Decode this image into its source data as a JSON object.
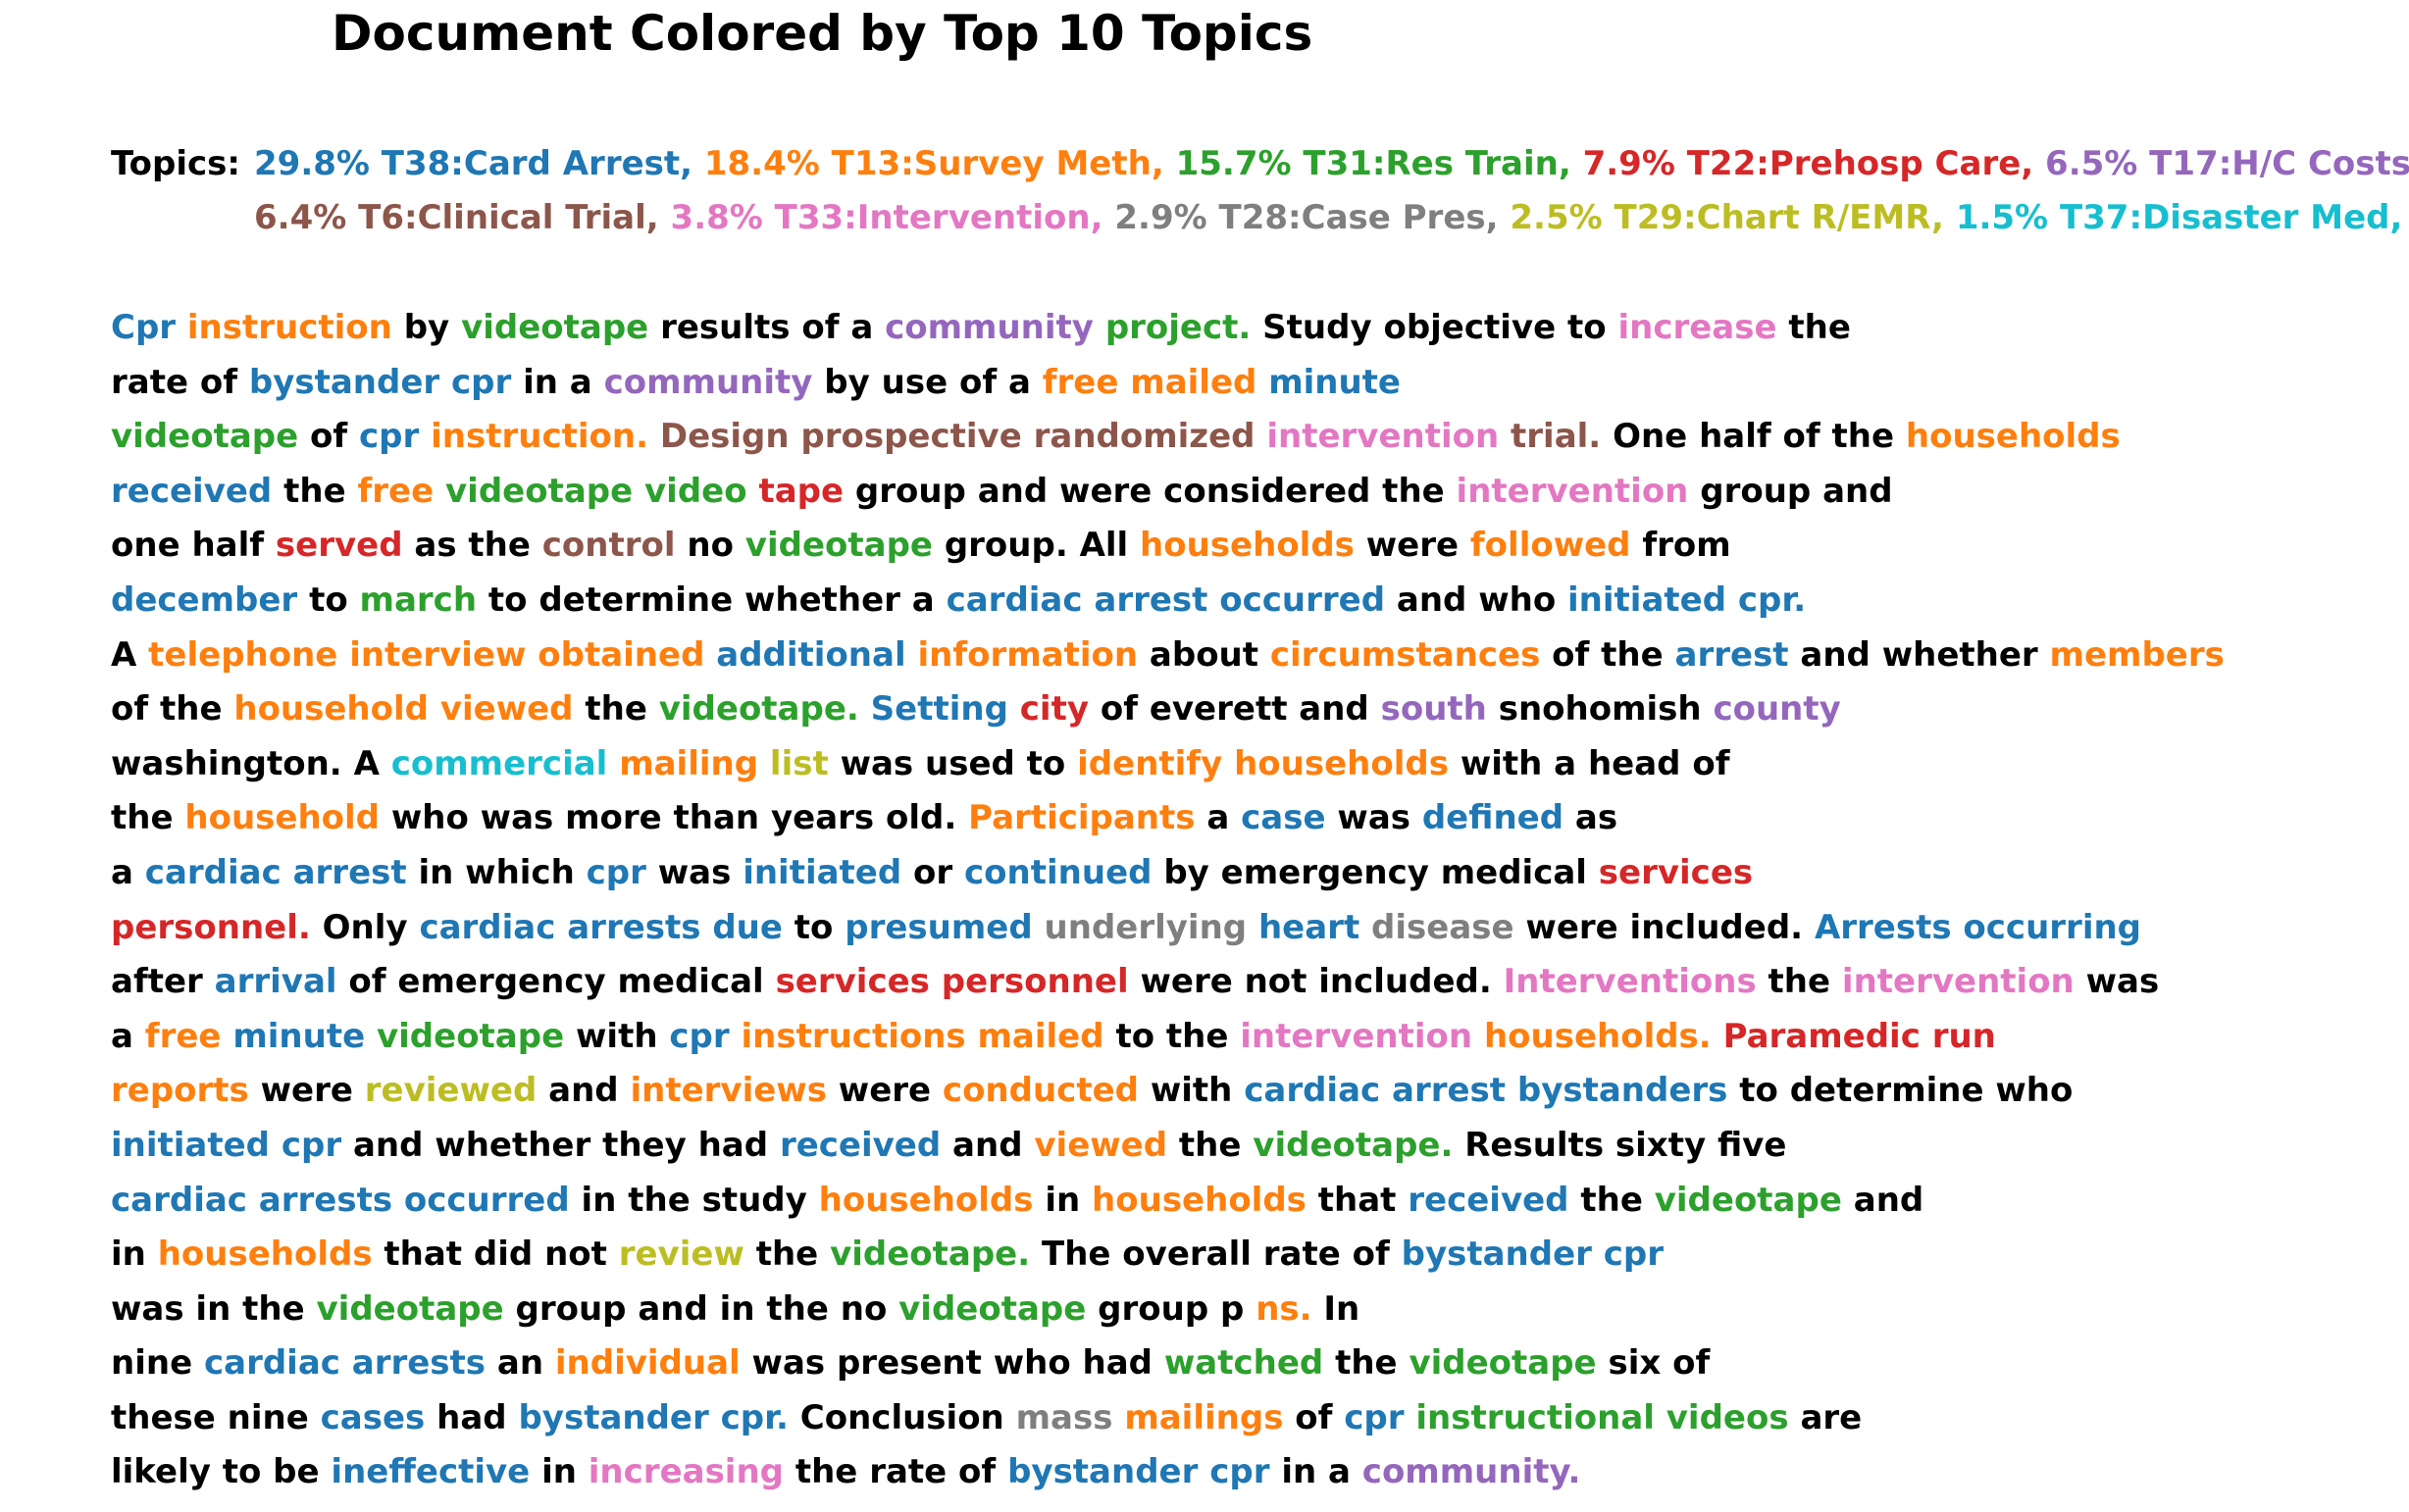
{
  "title": "Document Colored by Top 10 Topics",
  "legend_label": "Topics:",
  "topic_colors": {
    "T38": "#1f77b4",
    "T13": "#ff7f0e",
    "T31": "#2ca02c",
    "T22": "#d62728",
    "T17": "#9467bd",
    "T6": "#8c564b",
    "T33": "#e377c2",
    "T28": "#7f7f7f",
    "T29": "#bcbd22",
    "T37": "#17becf",
    "none": "#000000"
  },
  "topics": [
    {
      "id": "T38",
      "label": "29.8% T38:Card Arrest,"
    },
    {
      "id": "T13",
      "label": "18.4% T13:Survey Meth,"
    },
    {
      "id": "T31",
      "label": "15.7% T31:Res Train,"
    },
    {
      "id": "T22",
      "label": "7.9% T22:Prehosp Care,"
    },
    {
      "id": "T17",
      "label": "6.5% T17:H/C Costs,"
    },
    {
      "id": "T6",
      "label": "6.4% T6:Clinical Trial,"
    },
    {
      "id": "T33",
      "label": "3.8% T33:Intervention,"
    },
    {
      "id": "T28",
      "label": "2.9% T28:Case Pres,"
    },
    {
      "id": "T29",
      "label": "2.5% T29:Chart R/EMR,"
    },
    {
      "id": "T37",
      "label": "1.5% T37:Disaster Med,"
    }
  ],
  "legend_lines": [
    [
      0,
      1,
      2,
      3,
      4
    ],
    [
      5,
      6,
      7,
      8,
      9
    ]
  ],
  "lines": [
    [
      [
        "Cpr",
        "T38"
      ],
      [
        "instruction",
        "T13"
      ],
      [
        "by",
        ""
      ],
      [
        "videotape",
        "T31"
      ],
      [
        "results of a",
        ""
      ],
      [
        "community",
        "T17"
      ],
      [
        "project.",
        "T31"
      ],
      [
        "Study objective to",
        ""
      ],
      [
        "increase",
        "T33"
      ],
      [
        "the",
        ""
      ]
    ],
    [
      [
        "rate of",
        ""
      ],
      [
        "bystander cpr",
        "T38"
      ],
      [
        "in a",
        ""
      ],
      [
        "community",
        "T17"
      ],
      [
        "by use of a",
        ""
      ],
      [
        "free mailed",
        "T13"
      ],
      [
        "minute",
        "T38"
      ]
    ],
    [
      [
        "videotape",
        "T31"
      ],
      [
        "of",
        ""
      ],
      [
        "cpr",
        "T38"
      ],
      [
        "instruction.",
        "T13"
      ],
      [
        "Design prospective randomized",
        "T6"
      ],
      [
        "intervention",
        "T33"
      ],
      [
        "trial.",
        "T6"
      ],
      [
        "One half of the",
        ""
      ],
      [
        "households",
        "T13"
      ]
    ],
    [
      [
        "received",
        "T38"
      ],
      [
        "the",
        ""
      ],
      [
        "free",
        "T13"
      ],
      [
        "videotape video",
        "T31"
      ],
      [
        "tape",
        "T22"
      ],
      [
        "group and were considered the",
        ""
      ],
      [
        "intervention",
        "T33"
      ],
      [
        "group and",
        ""
      ]
    ],
    [
      [
        "one half",
        ""
      ],
      [
        "served",
        "T22"
      ],
      [
        "as the",
        ""
      ],
      [
        "control",
        "T6"
      ],
      [
        "no",
        ""
      ],
      [
        "videotape",
        "T31"
      ],
      [
        "group. All",
        ""
      ],
      [
        "households",
        "T13"
      ],
      [
        "were",
        ""
      ],
      [
        "followed",
        "T13"
      ],
      [
        "from",
        ""
      ]
    ],
    [
      [
        "december",
        "T38"
      ],
      [
        "to",
        ""
      ],
      [
        "march",
        "T31"
      ],
      [
        "to determine whether a",
        ""
      ],
      [
        "cardiac arrest occurred",
        "T38"
      ],
      [
        "and who",
        ""
      ],
      [
        "initiated cpr.",
        "T38"
      ]
    ],
    [
      [
        "A",
        ""
      ],
      [
        "telephone interview obtained",
        "T13"
      ],
      [
        "additional",
        "T38"
      ],
      [
        "information",
        "T13"
      ],
      [
        "about",
        ""
      ],
      [
        "circumstances",
        "T13"
      ],
      [
        "of the",
        ""
      ],
      [
        "arrest",
        "T38"
      ],
      [
        "and whether",
        ""
      ],
      [
        "members",
        "T13"
      ]
    ],
    [
      [
        "of the",
        ""
      ],
      [
        "household viewed",
        "T13"
      ],
      [
        "the",
        ""
      ],
      [
        "videotape.",
        "T31"
      ],
      [
        "Setting",
        "T38"
      ],
      [
        "city",
        "T22"
      ],
      [
        "of everett and",
        ""
      ],
      [
        "south",
        "T17"
      ],
      [
        "snohomish",
        ""
      ],
      [
        "county",
        "T17"
      ]
    ],
    [
      [
        "washington. A",
        ""
      ],
      [
        "commercial",
        "T37"
      ],
      [
        "mailing",
        "T13"
      ],
      [
        "list",
        "T29"
      ],
      [
        "was used to",
        ""
      ],
      [
        "identify households",
        "T13"
      ],
      [
        "with a head of",
        ""
      ]
    ],
    [
      [
        "the",
        ""
      ],
      [
        "household",
        "T13"
      ],
      [
        "who was more than years old.",
        ""
      ],
      [
        "Participants",
        "T13"
      ],
      [
        "a",
        ""
      ],
      [
        "case",
        "T38"
      ],
      [
        "was",
        ""
      ],
      [
        "defined",
        "T38"
      ],
      [
        "as",
        ""
      ]
    ],
    [
      [
        "a",
        ""
      ],
      [
        "cardiac arrest",
        "T38"
      ],
      [
        "in which",
        ""
      ],
      [
        "cpr",
        "T38"
      ],
      [
        "was",
        ""
      ],
      [
        "initiated",
        "T38"
      ],
      [
        "or",
        ""
      ],
      [
        "continued",
        "T38"
      ],
      [
        "by emergency medical",
        ""
      ],
      [
        "services",
        "T22"
      ]
    ],
    [
      [
        "personnel.",
        "T22"
      ],
      [
        "Only",
        ""
      ],
      [
        "cardiac arrests due",
        "T38"
      ],
      [
        "to",
        ""
      ],
      [
        "presumed",
        "T38"
      ],
      [
        "underlying",
        "T28"
      ],
      [
        "heart",
        "T38"
      ],
      [
        "disease",
        "T28"
      ],
      [
        "were included.",
        ""
      ],
      [
        "Arrests occurring",
        "T38"
      ]
    ],
    [
      [
        "after",
        ""
      ],
      [
        "arrival",
        "T38"
      ],
      [
        "of emergency medical",
        ""
      ],
      [
        "services personnel",
        "T22"
      ],
      [
        "were not included.",
        ""
      ],
      [
        "Interventions",
        "T33"
      ],
      [
        "the",
        ""
      ],
      [
        "intervention",
        "T33"
      ],
      [
        "was",
        ""
      ]
    ],
    [
      [
        "a",
        ""
      ],
      [
        "free",
        "T13"
      ],
      [
        "minute",
        "T38"
      ],
      [
        "videotape",
        "T31"
      ],
      [
        "with",
        ""
      ],
      [
        "cpr",
        "T38"
      ],
      [
        "instructions mailed",
        "T13"
      ],
      [
        "to the",
        ""
      ],
      [
        "intervention",
        "T33"
      ],
      [
        "households.",
        "T13"
      ],
      [
        "Paramedic run",
        "T22"
      ]
    ],
    [
      [
        "reports",
        "T13"
      ],
      [
        "were",
        ""
      ],
      [
        "reviewed",
        "T29"
      ],
      [
        "and",
        ""
      ],
      [
        "interviews",
        "T13"
      ],
      [
        "were",
        ""
      ],
      [
        "conducted",
        "T13"
      ],
      [
        "with",
        ""
      ],
      [
        "cardiac arrest bystanders",
        "T38"
      ],
      [
        "to determine who",
        ""
      ]
    ],
    [
      [
        "initiated cpr",
        "T38"
      ],
      [
        "and whether they had",
        ""
      ],
      [
        "received",
        "T38"
      ],
      [
        "and",
        ""
      ],
      [
        "viewed",
        "T13"
      ],
      [
        "the",
        ""
      ],
      [
        "videotape.",
        "T31"
      ],
      [
        "Results sixty five",
        ""
      ]
    ],
    [
      [
        "cardiac arrests occurred",
        "T38"
      ],
      [
        "in the study",
        ""
      ],
      [
        "households",
        "T13"
      ],
      [
        "in",
        ""
      ],
      [
        "households",
        "T13"
      ],
      [
        "that",
        ""
      ],
      [
        "received",
        "T38"
      ],
      [
        "the",
        ""
      ],
      [
        "videotape",
        "T31"
      ],
      [
        "and",
        ""
      ]
    ],
    [
      [
        "in",
        ""
      ],
      [
        "households",
        "T13"
      ],
      [
        "that did not",
        ""
      ],
      [
        "review",
        "T29"
      ],
      [
        "the",
        ""
      ],
      [
        "videotape.",
        "T31"
      ],
      [
        "The overall rate of",
        ""
      ],
      [
        "bystander cpr",
        "T38"
      ]
    ],
    [
      [
        "was in the",
        ""
      ],
      [
        "videotape",
        "T31"
      ],
      [
        "group and in the no",
        ""
      ],
      [
        "videotape",
        "T31"
      ],
      [
        "group p",
        ""
      ],
      [
        "ns.",
        "T13"
      ],
      [
        "In",
        ""
      ]
    ],
    [
      [
        "nine",
        ""
      ],
      [
        "cardiac arrests",
        "T38"
      ],
      [
        "an",
        ""
      ],
      [
        "individual",
        "T13"
      ],
      [
        "was present who had",
        ""
      ],
      [
        "watched",
        "T31"
      ],
      [
        "the",
        ""
      ],
      [
        "videotape",
        "T31"
      ],
      [
        "six of",
        ""
      ]
    ],
    [
      [
        "these nine",
        ""
      ],
      [
        "cases",
        "T38"
      ],
      [
        "had",
        ""
      ],
      [
        "bystander cpr.",
        "T38"
      ],
      [
        "Conclusion",
        ""
      ],
      [
        "mass",
        "T28"
      ],
      [
        "mailings",
        "T13"
      ],
      [
        "of",
        ""
      ],
      [
        "cpr",
        "T38"
      ],
      [
        "instructional videos",
        "T31"
      ],
      [
        "are",
        ""
      ]
    ],
    [
      [
        "likely to be",
        ""
      ],
      [
        "ineffective",
        "T38"
      ],
      [
        "in",
        ""
      ],
      [
        "increasing",
        "T33"
      ],
      [
        "the rate of",
        ""
      ],
      [
        "bystander cpr",
        "T38"
      ],
      [
        "in a",
        ""
      ],
      [
        "community.",
        "T17"
      ]
    ]
  ]
}
